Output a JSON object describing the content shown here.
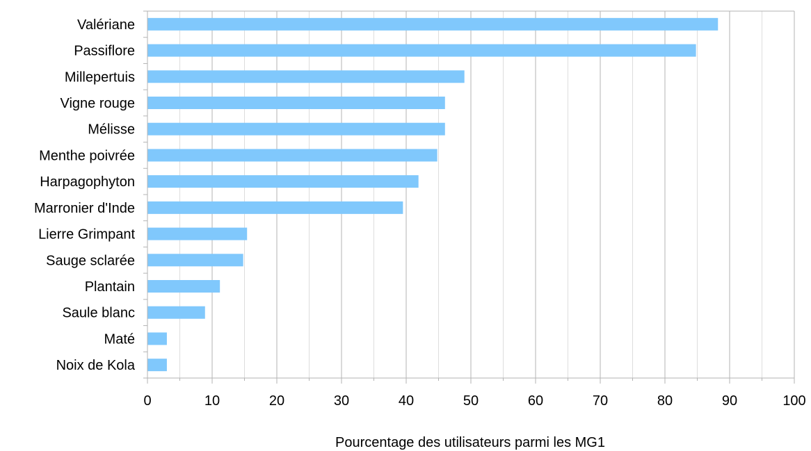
{
  "chart_data": {
    "type": "bar",
    "orientation": "horizontal",
    "categories": [
      "Valériane",
      "Passiflore",
      "Millepertuis",
      "Vigne rouge",
      "Mélisse",
      "Menthe poivrée",
      "Harpagophyton",
      "Marronier d'Inde",
      "Lierre Grimpant",
      "Sauge sclarée",
      "Plantain",
      "Saule blanc",
      "Maté",
      "Noix de Kola"
    ],
    "values": [
      88.2,
      84.8,
      49,
      46,
      46,
      44.8,
      41.9,
      39.5,
      15.4,
      14.8,
      11.2,
      8.9,
      3,
      3
    ],
    "xlabel": "Pourcentage des utilisateurs parmi les MG1",
    "ylabel": "",
    "xlim": [
      0,
      100
    ],
    "xticks": [
      "0",
      "10",
      "20",
      "30",
      "40",
      "50",
      "60",
      "70",
      "80",
      "90",
      "100"
    ],
    "grid": "vertical, major and minor",
    "legend": "none",
    "colors": {
      "bar": "#80c8fc",
      "grid": "#b3b3b3",
      "axis": "#b3b3b3"
    }
  }
}
